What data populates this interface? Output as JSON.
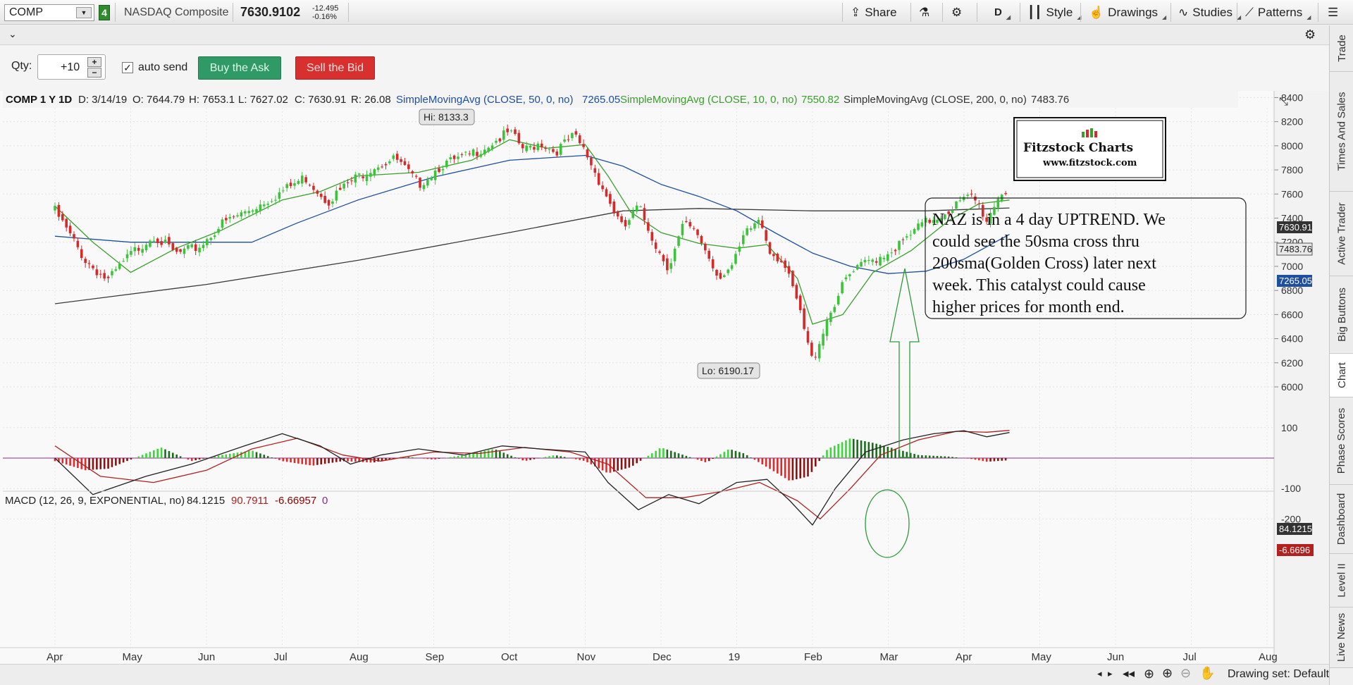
{
  "header": {
    "symbol": "COMP",
    "link_group": "4",
    "name": "NASDAQ Composite",
    "price": "7630.9102",
    "change": "-12.495",
    "change_pct": "-0.16%",
    "share_label": "Share",
    "aggregation": "D",
    "style_label": "Style",
    "drawings_label": "Drawings",
    "studies_label": "Studies",
    "patterns_label": "Patterns"
  },
  "order": {
    "qty_label": "Qty:",
    "qty_value": "+10",
    "auto_send_label": "auto send",
    "buy_label": "Buy the Ask",
    "sell_label": "Sell the Bid"
  },
  "price_header": {
    "symbol": "COMP 1 Y 1D",
    "date": "D: 3/14/19",
    "open": "O: 7644.79",
    "high": "H: 7653.1",
    "low": "L: 7627.02",
    "close": "C: 7630.91",
    "range": "R: 26.08",
    "sma50_label": "SimpleMovingAvg (CLOSE, 50, 0, no)",
    "sma50_value": "7265.05",
    "sma10_label": "SimpleMovingAvg (CLOSE, 10, 0, no)",
    "sma10_value": "7550.82",
    "sma200_label": "SimpleMovingAvg (CLOSE, 200, 0, no)",
    "sma200_value": "7483.76"
  },
  "macd_header": {
    "label": "MACD (12, 26, 9, EXPONENTIAL, no)",
    "value": "84.1215",
    "avg": "90.7911",
    "diff": "-6.66957",
    "zero": "0"
  },
  "badges": {
    "close": "7630.91",
    "sma200": "7483.76",
    "sma50": "7265.05",
    "macd": "84.1215",
    "diff": "-6.6696"
  },
  "callouts": {
    "hi": "Hi: 8133.3",
    "lo": "Lo: 6190.17"
  },
  "logo": {
    "name": "Fitzstock Charts",
    "url": "www.fitzstock.com"
  },
  "annotation": {
    "lines": [
      "NAZ is in a 4 day UPTREND.  We",
      "could see the 50sma cross thru",
      "200sma(Golden Cross) later next",
      "week.  This catalyst could cause",
      "higher prices for month end."
    ]
  },
  "statusbar": {
    "drawing_set": "Drawing set: Default"
  },
  "sidebar": {
    "tabs": [
      "Trade",
      "Times And Sales",
      "Active Trader",
      "Big Buttons",
      "Chart",
      "Phase Scores",
      "Dashboard",
      "Level II",
      "Live News"
    ],
    "active": "Chart"
  },
  "colors": {
    "up": "#3ec23e",
    "down": "#d42a2a",
    "sma50": "#1f4fa0",
    "sma10": "#3a9e2c",
    "sma200": "#3a3a3a",
    "macd_line": "#222222",
    "macd_avg": "#b02020",
    "zero_line": "#8a2a8a",
    "annotation_arrow": "#2e9a3a"
  },
  "chart_data": [
    {
      "type": "candlestick",
      "title": "COMP 1 Y 1D",
      "x_axis": {
        "ticks": [
          "Apr",
          "May",
          "Jun",
          "Jul",
          "Aug",
          "Sep",
          "Oct",
          "Nov",
          "Dec",
          "19",
          "Feb",
          "Mar",
          "Apr",
          "May",
          "Jun",
          "Jul",
          "Aug"
        ]
      },
      "y_axis": {
        "ticks": [
          8400,
          8200,
          8000,
          7800,
          7600,
          7400,
          7200,
          7000,
          6800,
          6600,
          6400,
          6200,
          6000
        ],
        "range": [
          5950,
          8500
        ]
      },
      "close_path": [
        {
          "m": 0.0,
          "c": 7460
        },
        {
          "m": 0.4,
          "c": 7050
        },
        {
          "m": 0.7,
          "c": 6880
        },
        {
          "m": 1.0,
          "c": 7100
        },
        {
          "m": 1.3,
          "c": 7260
        },
        {
          "m": 1.6,
          "c": 7100
        },
        {
          "m": 1.9,
          "c": 7160
        },
        {
          "m": 2.2,
          "c": 7350
        },
        {
          "m": 2.6,
          "c": 7480
        },
        {
          "m": 3.0,
          "c": 7620
        },
        {
          "m": 3.3,
          "c": 7740
        },
        {
          "m": 3.6,
          "c": 7540
        },
        {
          "m": 3.9,
          "c": 7700
        },
        {
          "m": 4.2,
          "c": 7830
        },
        {
          "m": 4.5,
          "c": 7890
        },
        {
          "m": 4.8,
          "c": 7680
        },
        {
          "m": 5.1,
          "c": 7840
        },
        {
          "m": 5.4,
          "c": 7900
        },
        {
          "m": 5.7,
          "c": 8000
        },
        {
          "m": 6.0,
          "c": 8110
        },
        {
          "m": 6.2,
          "c": 7960
        },
        {
          "m": 6.4,
          "c": 8030
        },
        {
          "m": 6.6,
          "c": 7950
        },
        {
          "m": 6.85,
          "c": 8080
        },
        {
          "m": 7.0,
          "c": 7950
        },
        {
          "m": 7.3,
          "c": 7560
        },
        {
          "m": 7.5,
          "c": 7300
        },
        {
          "m": 7.7,
          "c": 7500
        },
        {
          "m": 7.95,
          "c": 7150
        },
        {
          "m": 8.1,
          "c": 6990
        },
        {
          "m": 8.3,
          "c": 7350
        },
        {
          "m": 8.5,
          "c": 7250
        },
        {
          "m": 8.75,
          "c": 6920
        },
        {
          "m": 8.95,
          "c": 7000
        },
        {
          "m": 9.1,
          "c": 7250
        },
        {
          "m": 9.3,
          "c": 7400
        },
        {
          "m": 9.45,
          "c": 7120
        },
        {
          "m": 9.6,
          "c": 7050
        },
        {
          "m": 9.8,
          "c": 6700
        },
        {
          "m": 9.95,
          "c": 6320
        },
        {
          "m": 10.0,
          "c": 6210
        },
        {
          "m": 10.2,
          "c": 6580
        },
        {
          "m": 10.45,
          "c": 6900
        },
        {
          "m": 10.7,
          "c": 7030
        },
        {
          "m": 10.95,
          "c": 7100
        },
        {
          "m": 11.2,
          "c": 7200
        },
        {
          "m": 11.45,
          "c": 7350
        },
        {
          "m": 11.7,
          "c": 7430
        },
        {
          "m": 11.95,
          "c": 7530
        },
        {
          "m": 12.1,
          "c": 7580
        },
        {
          "m": 12.2,
          "c": 7500
        },
        {
          "m": 12.3,
          "c": 7380
        },
        {
          "m": 12.45,
          "c": 7580
        },
        {
          "m": 12.55,
          "c": 7630
        }
      ],
      "high": 8133.3,
      "low": 6190.17
    },
    {
      "type": "line",
      "series": [
        {
          "name": "SimpleMovingAvg (CLOSE, 50, 0, no)",
          "points": [
            {
              "m": 0.0,
              "v": 7250
            },
            {
              "m": 1.0,
              "v": 7200
            },
            {
              "m": 1.8,
              "v": 7200
            },
            {
              "m": 2.6,
              "v": 7200
            },
            {
              "m": 3.2,
              "v": 7360
            },
            {
              "m": 4.0,
              "v": 7550
            },
            {
              "m": 5.0,
              "v": 7740
            },
            {
              "m": 6.0,
              "v": 7880
            },
            {
              "m": 7.0,
              "v": 7920
            },
            {
              "m": 7.5,
              "v": 7830
            },
            {
              "m": 8.0,
              "v": 7680
            },
            {
              "m": 8.5,
              "v": 7580
            },
            {
              "m": 9.0,
              "v": 7460
            },
            {
              "m": 9.5,
              "v": 7280
            },
            {
              "m": 10.0,
              "v": 7110
            },
            {
              "m": 10.5,
              "v": 7000
            },
            {
              "m": 11.0,
              "v": 6940
            },
            {
              "m": 11.5,
              "v": 6960
            },
            {
              "m": 12.0,
              "v": 7060
            },
            {
              "m": 12.6,
              "v": 7265
            }
          ]
        },
        {
          "name": "SimpleMovingAvg (CLOSE, 10, 0, no)",
          "points": [
            {
              "m": 0.0,
              "v": 7500
            },
            {
              "m": 0.5,
              "v": 7200
            },
            {
              "m": 1.0,
              "v": 6950
            },
            {
              "m": 1.6,
              "v": 7150
            },
            {
              "m": 2.2,
              "v": 7300
            },
            {
              "m": 3.0,
              "v": 7550
            },
            {
              "m": 3.5,
              "v": 7620
            },
            {
              "m": 4.0,
              "v": 7750
            },
            {
              "m": 4.8,
              "v": 7780
            },
            {
              "m": 5.5,
              "v": 7880
            },
            {
              "m": 6.0,
              "v": 8050
            },
            {
              "m": 6.5,
              "v": 7980
            },
            {
              "m": 7.0,
              "v": 8010
            },
            {
              "m": 7.3,
              "v": 7750
            },
            {
              "m": 7.6,
              "v": 7450
            },
            {
              "m": 8.0,
              "v": 7280
            },
            {
              "m": 8.5,
              "v": 7190
            },
            {
              "m": 9.0,
              "v": 7150
            },
            {
              "m": 9.4,
              "v": 7180
            },
            {
              "m": 9.8,
              "v": 6900
            },
            {
              "m": 10.0,
              "v": 6520
            },
            {
              "m": 10.4,
              "v": 6600
            },
            {
              "m": 10.8,
              "v": 6950
            },
            {
              "m": 11.3,
              "v": 7130
            },
            {
              "m": 11.8,
              "v": 7380
            },
            {
              "m": 12.2,
              "v": 7520
            },
            {
              "m": 12.6,
              "v": 7550
            }
          ]
        },
        {
          "name": "SimpleMovingAvg (CLOSE, 200, 0, no)",
          "points": [
            {
              "m": 0.0,
              "v": 6690
            },
            {
              "m": 2.0,
              "v": 6850
            },
            {
              "m": 4.0,
              "v": 7050
            },
            {
              "m": 6.0,
              "v": 7280
            },
            {
              "m": 7.5,
              "v": 7460
            },
            {
              "m": 8.5,
              "v": 7480
            },
            {
              "m": 10.0,
              "v": 7460
            },
            {
              "m": 11.5,
              "v": 7460
            },
            {
              "m": 12.6,
              "v": 7484
            }
          ]
        }
      ]
    },
    {
      "type": "bar",
      "title": "MACD (12, 26, 9, EXPONENTIAL, no)",
      "y_axis": {
        "ticks": [
          100,
          -100,
          -200
        ],
        "range": [
          -250,
          150
        ]
      },
      "histogram_path": [
        {
          "m": 0.0,
          "v": -10
        },
        {
          "m": 0.4,
          "v": -40
        },
        {
          "m": 0.7,
          "v": -35
        },
        {
          "m": 1.0,
          "v": -5
        },
        {
          "m": 1.4,
          "v": 35
        },
        {
          "m": 1.8,
          "v": -10
        },
        {
          "m": 2.2,
          "v": 10
        },
        {
          "m": 2.6,
          "v": 25
        },
        {
          "m": 3.0,
          "v": -10
        },
        {
          "m": 3.4,
          "v": -25
        },
        {
          "m": 3.8,
          "v": -10
        },
        {
          "m": 4.2,
          "v": -15
        },
        {
          "m": 4.6,
          "v": 5
        },
        {
          "m": 5.0,
          "v": -5
        },
        {
          "m": 5.4,
          "v": 10
        },
        {
          "m": 5.8,
          "v": 30
        },
        {
          "m": 6.2,
          "v": -10
        },
        {
          "m": 6.6,
          "v": 10
        },
        {
          "m": 7.0,
          "v": -10
        },
        {
          "m": 7.3,
          "v": -50
        },
        {
          "m": 7.6,
          "v": -30
        },
        {
          "m": 8.0,
          "v": 35
        },
        {
          "m": 8.3,
          "v": 10
        },
        {
          "m": 8.6,
          "v": -15
        },
        {
          "m": 8.9,
          "v": 30
        },
        {
          "m": 9.1,
          "v": 15
        },
        {
          "m": 9.4,
          "v": -30
        },
        {
          "m": 9.7,
          "v": -75
        },
        {
          "m": 9.95,
          "v": -60
        },
        {
          "m": 10.2,
          "v": 30
        },
        {
          "m": 10.5,
          "v": 65
        },
        {
          "m": 10.8,
          "v": 50
        },
        {
          "m": 11.1,
          "v": 30
        },
        {
          "m": 11.4,
          "v": 10
        },
        {
          "m": 11.8,
          "v": 5
        },
        {
          "m": 12.1,
          "v": -3
        },
        {
          "m": 12.3,
          "v": -12
        },
        {
          "m": 12.6,
          "v": -7
        }
      ],
      "macd_path": [
        {
          "m": 0.0,
          "v": 0
        },
        {
          "m": 0.5,
          "v": -120
        },
        {
          "m": 1.2,
          "v": -60
        },
        {
          "m": 1.8,
          "v": -20
        },
        {
          "m": 2.5,
          "v": 40
        },
        {
          "m": 3.0,
          "v": 80
        },
        {
          "m": 3.5,
          "v": 40
        },
        {
          "m": 3.9,
          "v": -20
        },
        {
          "m": 4.3,
          "v": 10
        },
        {
          "m": 4.8,
          "v": 30
        },
        {
          "m": 5.4,
          "v": 10
        },
        {
          "m": 5.9,
          "v": 40
        },
        {
          "m": 6.4,
          "v": 30
        },
        {
          "m": 7.0,
          "v": 20
        },
        {
          "m": 7.3,
          "v": -80
        },
        {
          "m": 7.7,
          "v": -170
        },
        {
          "m": 8.1,
          "v": -120
        },
        {
          "m": 8.5,
          "v": -150
        },
        {
          "m": 9.0,
          "v": -80
        },
        {
          "m": 9.4,
          "v": -70
        },
        {
          "m": 9.7,
          "v": -140
        },
        {
          "m": 10.0,
          "v": -220
        },
        {
          "m": 10.3,
          "v": -100
        },
        {
          "m": 10.7,
          "v": 20
        },
        {
          "m": 11.2,
          "v": 60
        },
        {
          "m": 11.6,
          "v": 80
        },
        {
          "m": 12.0,
          "v": 90
        },
        {
          "m": 12.3,
          "v": 70
        },
        {
          "m": 12.6,
          "v": 84
        }
      ],
      "signal_path": [
        {
          "m": 0.0,
          "v": 40
        },
        {
          "m": 0.6,
          "v": -60
        },
        {
          "m": 1.3,
          "v": -80
        },
        {
          "m": 2.0,
          "v": -40
        },
        {
          "m": 2.6,
          "v": 30
        },
        {
          "m": 3.2,
          "v": 65
        },
        {
          "m": 3.8,
          "v": 10
        },
        {
          "m": 4.3,
          "v": -10
        },
        {
          "m": 5.0,
          "v": 20
        },
        {
          "m": 5.6,
          "v": 15
        },
        {
          "m": 6.2,
          "v": 35
        },
        {
          "m": 6.8,
          "v": 20
        },
        {
          "m": 7.3,
          "v": -20
        },
        {
          "m": 7.8,
          "v": -130
        },
        {
          "m": 8.3,
          "v": -130
        },
        {
          "m": 8.8,
          "v": -110
        },
        {
          "m": 9.3,
          "v": -80
        },
        {
          "m": 9.8,
          "v": -140
        },
        {
          "m": 10.1,
          "v": -200
        },
        {
          "m": 10.5,
          "v": -100
        },
        {
          "m": 10.9,
          "v": 10
        },
        {
          "m": 11.4,
          "v": 60
        },
        {
          "m": 11.9,
          "v": 88
        },
        {
          "m": 12.3,
          "v": 85
        },
        {
          "m": 12.6,
          "v": 91
        }
      ]
    }
  ]
}
